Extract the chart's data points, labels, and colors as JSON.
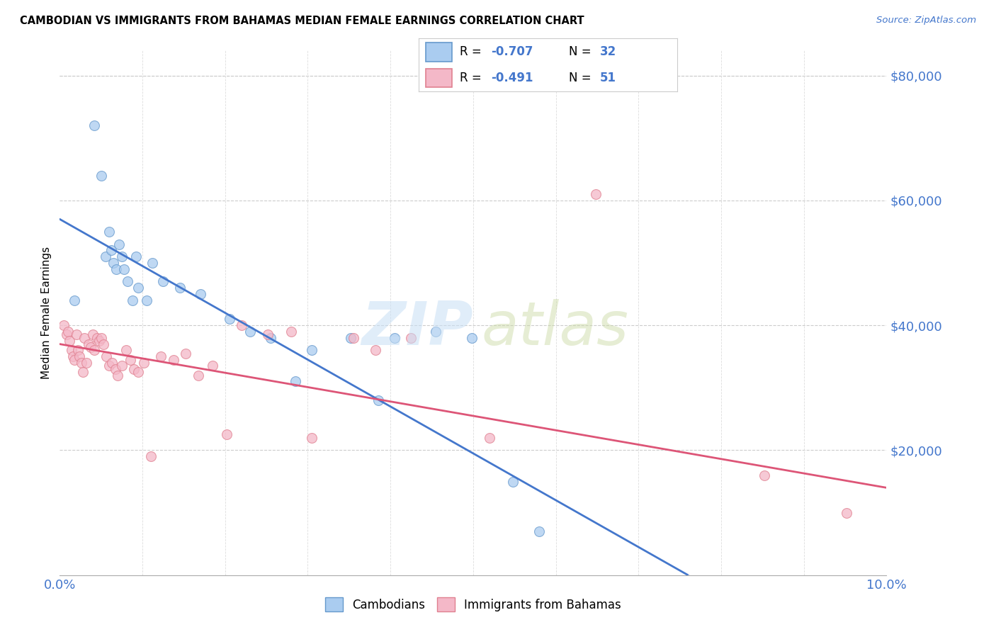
{
  "title": "CAMBODIAN VS IMMIGRANTS FROM BAHAMAS MEDIAN FEMALE EARNINGS CORRELATION CHART",
  "source": "Source: ZipAtlas.com",
  "ylabel": "Median Female Earnings",
  "y_ticks": [
    0,
    20000,
    40000,
    60000,
    80000
  ],
  "y_tick_labels_right": [
    "",
    "$20,000",
    "$40,000",
    "$60,000",
    "$80,000"
  ],
  "x_min": 0.0,
  "x_max": 10.0,
  "y_min": 0,
  "y_max": 84000,
  "blue_color_fill": "#aaccf0",
  "blue_color_edge": "#6699cc",
  "pink_color_fill": "#f4b8c8",
  "pink_color_edge": "#e08090",
  "blue_line_color": "#4477cc",
  "pink_line_color": "#dd5577",
  "dashed_ext_color": "#aabbdd",
  "legend_label1": "Cambodians",
  "legend_label2": "Immigrants from Bahamas",
  "blue_line_x0": 0.0,
  "blue_line_y0": 57000,
  "blue_line_x1": 7.6,
  "blue_line_y1": 0,
  "blue_dash_x1": 9.8,
  "pink_line_x0": 0.0,
  "pink_line_y0": 37000,
  "pink_line_x1": 10.0,
  "pink_line_y1": 14000,
  "cam_x": [
    0.18,
    0.42,
    0.5,
    0.55,
    0.6,
    0.62,
    0.65,
    0.68,
    0.72,
    0.75,
    0.78,
    0.82,
    0.88,
    0.92,
    0.95,
    1.05,
    1.12,
    1.25,
    1.45,
    1.7,
    2.05,
    2.3,
    2.55,
    2.85,
    3.05,
    3.52,
    3.85,
    4.05,
    4.55,
    4.98,
    5.48,
    5.8
  ],
  "cam_y": [
    44000,
    72000,
    64000,
    51000,
    55000,
    52000,
    50000,
    49000,
    53000,
    51000,
    49000,
    47000,
    44000,
    51000,
    46000,
    44000,
    50000,
    47000,
    46000,
    45000,
    41000,
    39000,
    38000,
    31000,
    36000,
    38000,
    28000,
    38000,
    39000,
    38000,
    15000,
    7000
  ],
  "bah_x": [
    0.05,
    0.08,
    0.1,
    0.12,
    0.14,
    0.16,
    0.18,
    0.2,
    0.22,
    0.24,
    0.26,
    0.28,
    0.3,
    0.32,
    0.35,
    0.37,
    0.4,
    0.42,
    0.45,
    0.48,
    0.5,
    0.53,
    0.56,
    0.6,
    0.63,
    0.67,
    0.7,
    0.75,
    0.8,
    0.85,
    0.9,
    0.95,
    1.02,
    1.1,
    1.22,
    1.38,
    1.52,
    1.68,
    1.85,
    2.02,
    2.2,
    2.52,
    2.8,
    3.05,
    3.55,
    3.82,
    4.25,
    5.2,
    6.48,
    8.52,
    9.52
  ],
  "bah_y": [
    40000,
    38500,
    39000,
    37500,
    36000,
    35000,
    34500,
    38500,
    36000,
    35000,
    34000,
    32500,
    38000,
    34000,
    37000,
    36500,
    38500,
    36000,
    38000,
    37500,
    38000,
    37000,
    35000,
    33500,
    34000,
    33000,
    32000,
    33500,
    36000,
    34500,
    33000,
    32500,
    34000,
    19000,
    35000,
    34500,
    35500,
    32000,
    33500,
    22500,
    40000,
    38500,
    39000,
    22000,
    38000,
    36000,
    38000,
    22000,
    61000,
    16000,
    10000
  ]
}
